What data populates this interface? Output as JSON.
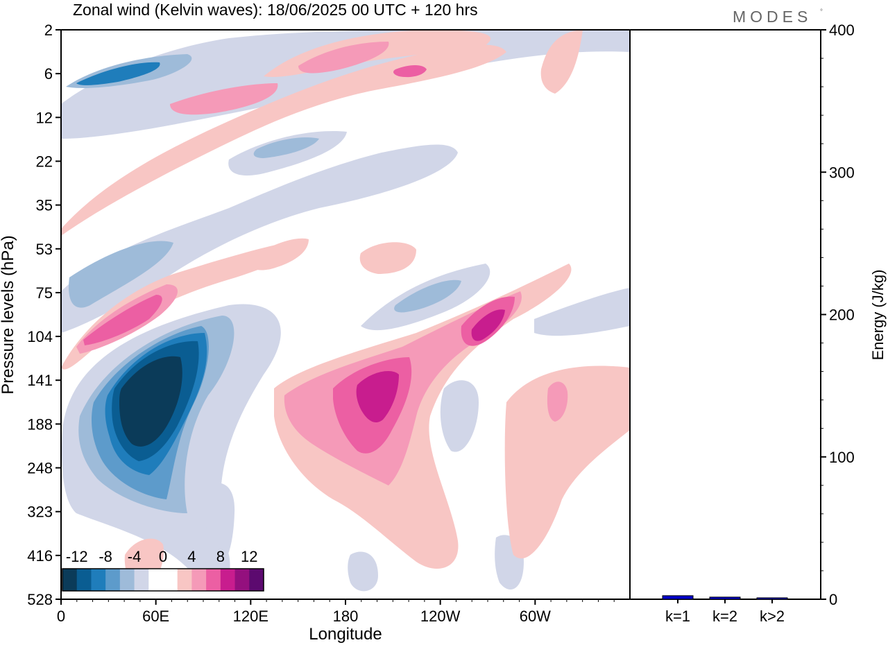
{
  "header": {
    "title": "Zonal wind (Kelvin waves):  18/06/2025  00 UTC  + 120 hrs",
    "brand": "MODES",
    "brand_mark": "°"
  },
  "chart_data": [
    {
      "type": "heatmap",
      "title": "Zonal wind (Kelvin waves):  18/06/2025  00 UTC  + 120 hrs",
      "xlabel": "Longitude",
      "ylabel": "Pressure levels (hPa)",
      "x_ticks": [
        "0",
        "60E",
        "120E",
        "180",
        "120W",
        "60W"
      ],
      "y_ticks": [
        "2",
        "6",
        "12",
        "22",
        "35",
        "53",
        "75",
        "104",
        "141",
        "188",
        "248",
        "323",
        "416",
        "528"
      ],
      "colorbar": {
        "tick_labels": [
          "-12",
          "-8",
          "-4",
          "0",
          "4",
          "8",
          "12"
        ],
        "levels": [
          -14,
          -12,
          -10,
          -8,
          -6,
          -4,
          -2,
          2,
          4,
          6,
          8,
          10,
          12,
          14
        ],
        "colors": [
          "#0b3b59",
          "#0a5d92",
          "#1f7dbb",
          "#5d9bcb",
          "#9ebbd9",
          "#d1d6e8",
          "#ffffff",
          "#ffffff",
          "#f8c6c4",
          "#f59ab8",
          "#ec5fa3",
          "#c81d8e",
          "#94107e",
          "#5c0a6f"
        ]
      },
      "features": [
        {
          "kind": "neg",
          "value": -14,
          "lon": 50,
          "level": "141"
        },
        {
          "kind": "neg",
          "value": -10,
          "lon": 40,
          "level": "6"
        },
        {
          "kind": "neg",
          "value": -6,
          "lon": 95,
          "level": "22"
        },
        {
          "kind": "neg",
          "value": -6,
          "lon": 20,
          "level": "53"
        },
        {
          "kind": "neg",
          "value": -4,
          "lon": 225,
          "level": "75"
        },
        {
          "kind": "pos",
          "value": 8,
          "lon": 35,
          "level": "104"
        },
        {
          "kind": "pos",
          "value": 10,
          "lon": 190,
          "level": "141"
        },
        {
          "kind": "pos",
          "value": 10,
          "lon": 255,
          "level": "104"
        },
        {
          "kind": "pos",
          "value": 8,
          "lon": 215,
          "level": "6"
        },
        {
          "kind": "pos",
          "value": 6,
          "lon": 70,
          "level": "12"
        }
      ]
    },
    {
      "type": "bar",
      "ylabel": "Energy (J/kg)",
      "categories": [
        "k=1",
        "k=2",
        "k>2"
      ],
      "values": [
        2.5,
        1.5,
        1.0
      ],
      "ylim": [
        0,
        400
      ],
      "y_ticks": [
        "0",
        "100",
        "200",
        "300",
        "400"
      ],
      "colors": [
        "#0000cc",
        "#0000cc",
        "#0000cc"
      ]
    }
  ]
}
